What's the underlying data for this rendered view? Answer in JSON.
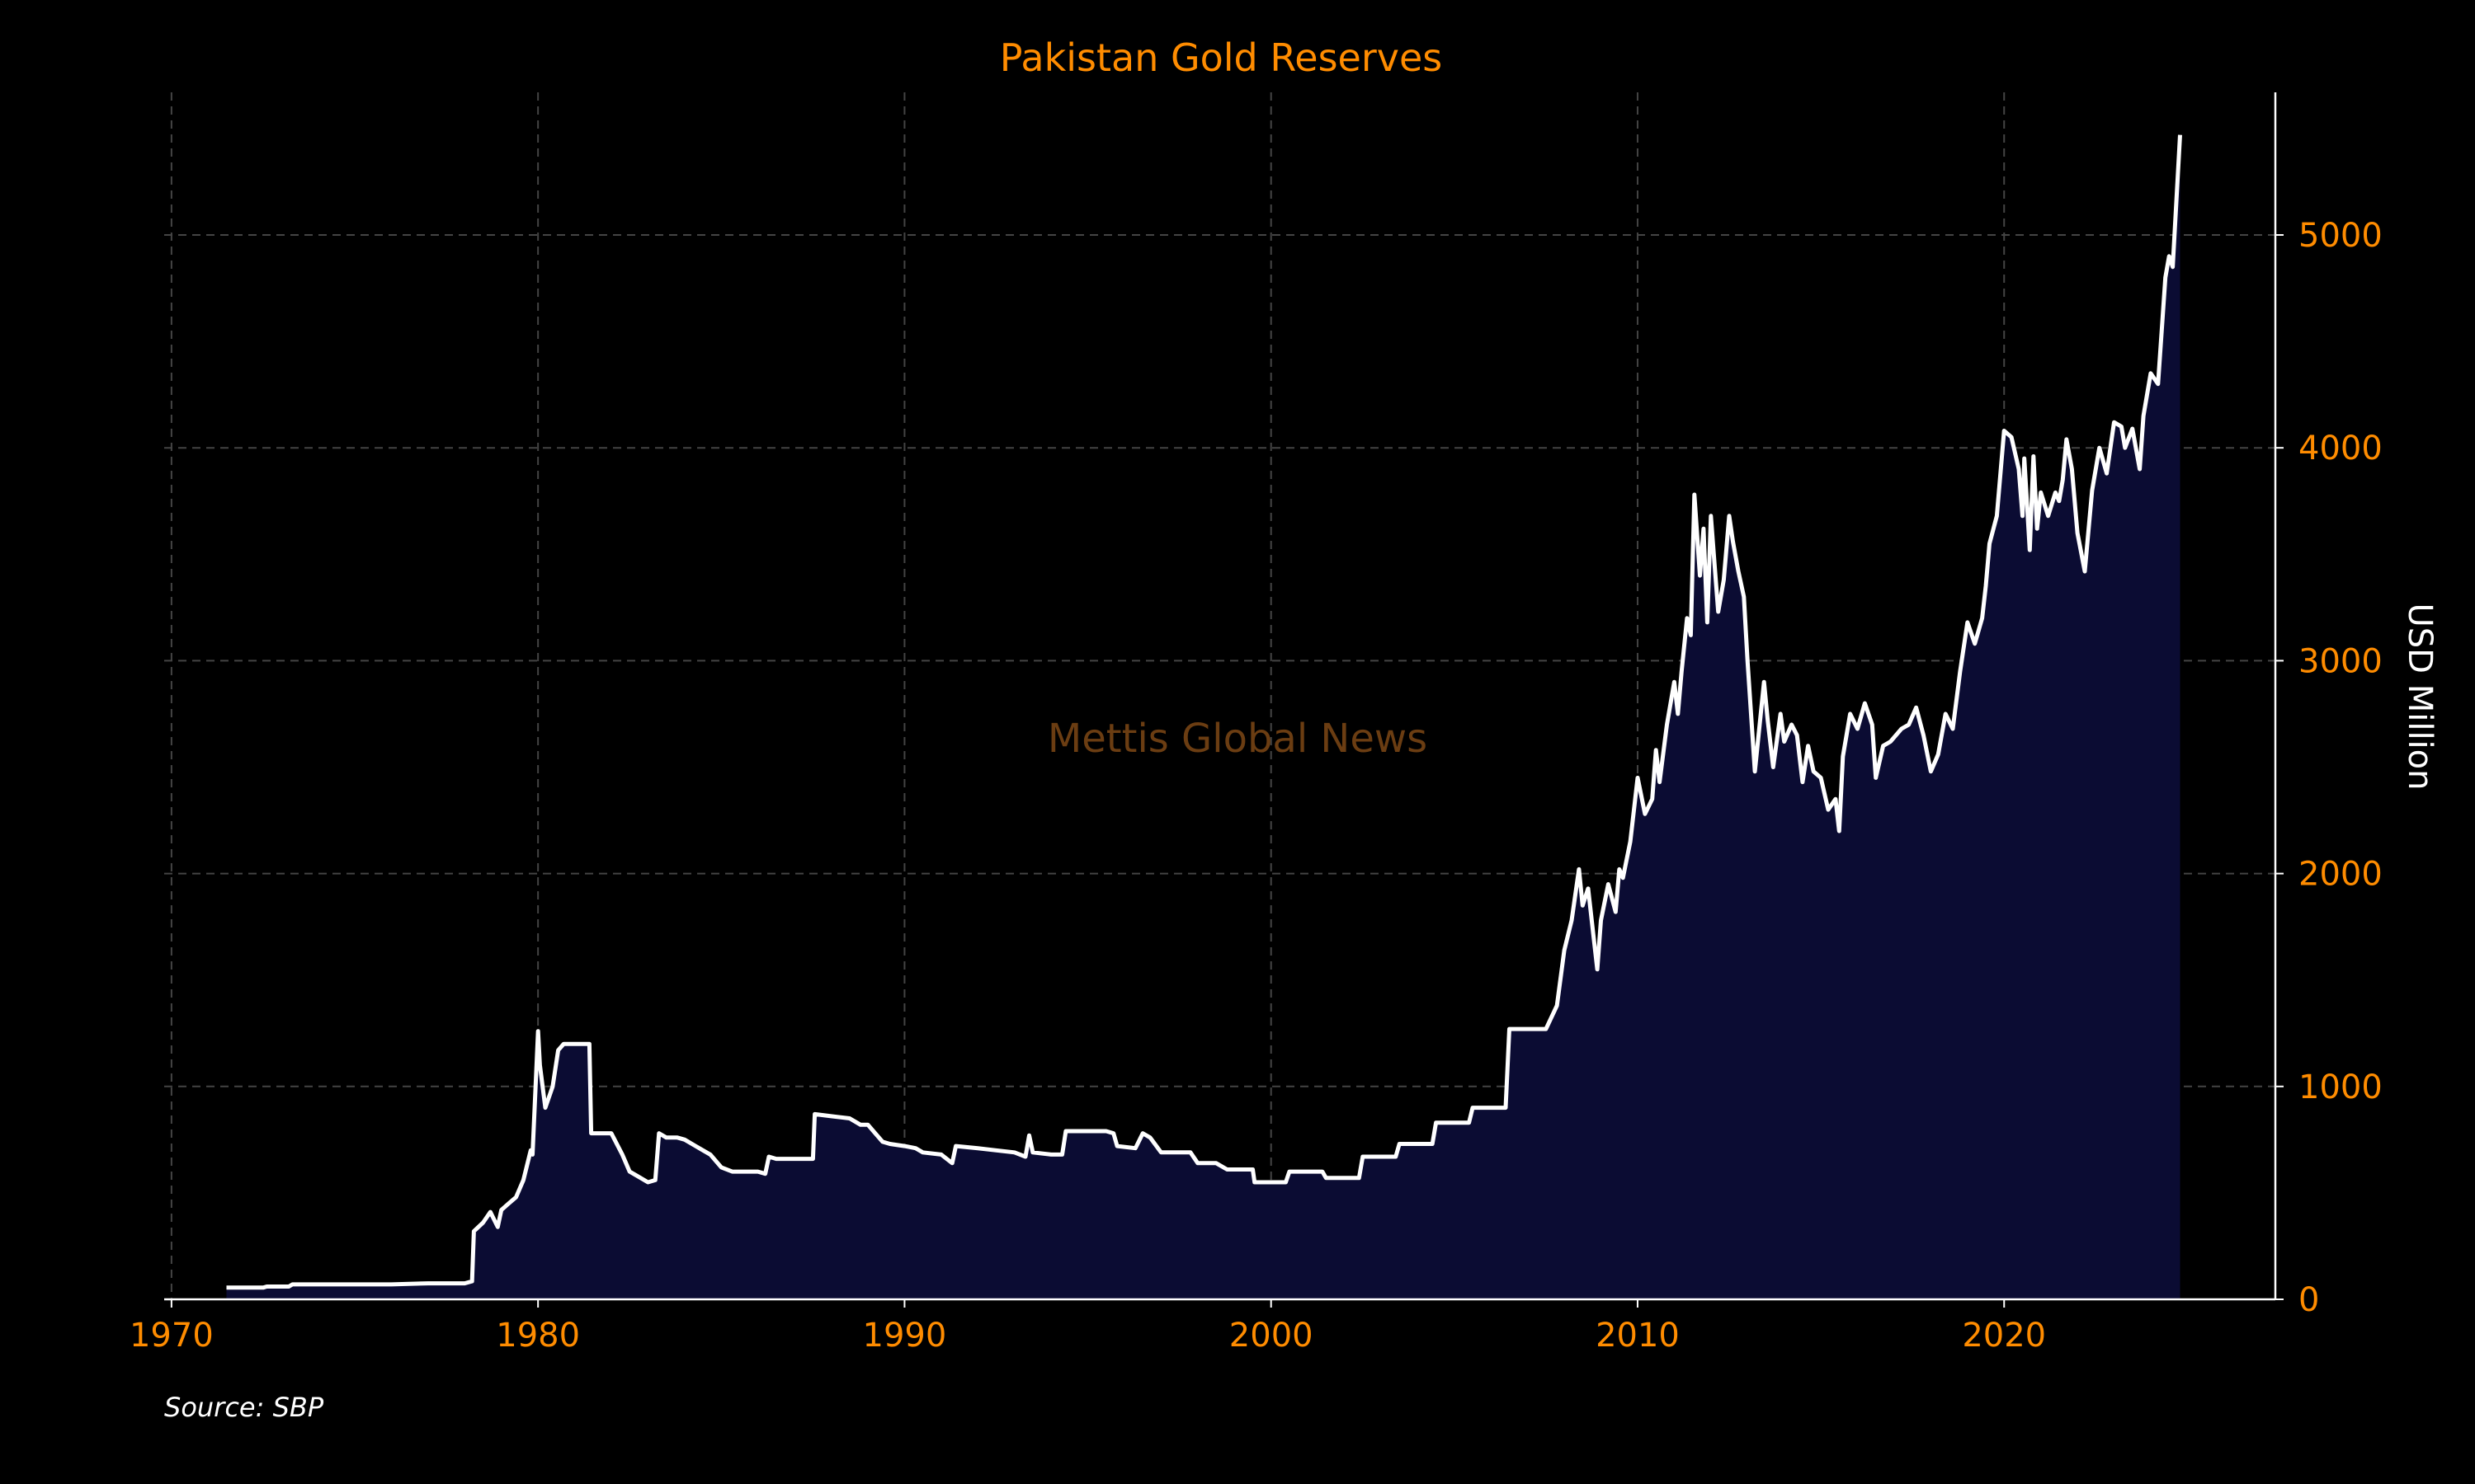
{
  "colors": {
    "background": "#000000",
    "accent": "#ff8c00",
    "line": "#ffffff",
    "fill": "#0b0c33",
    "grid": "#444444",
    "watermark": "#6b3d12"
  },
  "source": "Source: SBP",
  "watermark": "Mettis Global News",
  "chart_data": {
    "type": "area",
    "title": "Pakistan Gold Reserves",
    "xlabel": "",
    "ylabel": "USD Million",
    "x_ticks": [
      1970,
      1980,
      1990,
      2000,
      2010,
      2020
    ],
    "y_ticks": [
      0,
      1000,
      2000,
      3000,
      4000,
      5000
    ],
    "xlim": [
      1969.8,
      2027.4
    ],
    "ylim": [
      0,
      5670
    ],
    "y_axis_side": "right",
    "grid": true,
    "series": [
      {
        "x": [
          1971.5,
          1972.5,
          1972.6,
          1973.2,
          1973.3,
          1975,
          1976,
          1977,
          1978.0,
          1978.2,
          1978.25,
          1978.5,
          1978.7,
          1978.9,
          1979.0,
          1979.2,
          1979.4,
          1979.6,
          1979.8,
          1979.85,
          1980.0,
          1980.05,
          1980.2,
          1980.4,
          1980.55,
          1980.7,
          1981.0,
          1981.4,
          1981.45,
          1981.8,
          1982.0,
          1982.3,
          1982.5,
          1982.7,
          1983.0,
          1983.2,
          1983.3,
          1983.5,
          1983.8,
          1984.0,
          1984.3,
          1984.5,
          1984.7,
          1985.0,
          1985.3,
          1985.6,
          1986.0,
          1986.2,
          1986.3,
          1986.5,
          1987.0,
          1987.5,
          1987.55,
          1988.0,
          1988.5,
          1988.8,
          1989.0,
          1989.2,
          1989.4,
          1989.6,
          1990.0,
          1990.3,
          1990.5,
          1991.0,
          1991.3,
          1991.4,
          1992.0,
          1992.5,
          1993.0,
          1993.3,
          1993.4,
          1993.5,
          1994.0,
          1994.3,
          1994.4,
          1995.0,
          1995.5,
          1995.7,
          1995.8,
          1996.3,
          1996.5,
          1996.7,
          1997.0,
          1997.5,
          1997.8,
          1998.0,
          1998.5,
          1998.8,
          1999.0,
          1999.5,
          1999.55,
          2000.0,
          2000.4,
          2000.5,
          2001.0,
          2001.4,
          2001.5,
          2002.0,
          2002.4,
          2002.5,
          2003.0,
          2003.4,
          2003.5,
          2004.0,
          2004.4,
          2004.5,
          2005.0,
          2005.4,
          2005.5,
          2006.0,
          2006.4,
          2006.5,
          2007.0,
          2007.5,
          2007.8,
          2008.0,
          2008.2,
          2008.4,
          2008.5,
          2008.65,
          2008.8,
          2008.9,
          2009.0,
          2009.2,
          2009.4,
          2009.5,
          2009.6,
          2009.8,
          2010.0,
          2010.2,
          2010.4,
          2010.5,
          2010.6,
          2010.8,
          2011.0,
          2011.1,
          2011.2,
          2011.35,
          2011.45,
          2011.55,
          2011.7,
          2011.8,
          2011.9,
          2012.0,
          2012.1,
          2012.2,
          2012.35,
          2012.5,
          2012.6,
          2012.75,
          2012.9,
          2013.0,
          2013.2,
          2013.45,
          2013.55,
          2013.7,
          2013.9,
          2014.0,
          2014.2,
          2014.35,
          2014.5,
          2014.65,
          2014.8,
          2015.0,
          2015.2,
          2015.4,
          2015.5,
          2015.6,
          2015.8,
          2016.0,
          2016.2,
          2016.4,
          2016.5,
          2016.7,
          2016.9,
          2017.0,
          2017.2,
          2017.4,
          2017.6,
          2017.8,
          2018.0,
          2018.2,
          2018.4,
          2018.6,
          2018.8,
          2019.0,
          2019.2,
          2019.4,
          2019.5,
          2019.6,
          2019.8,
          2020.0,
          2020.2,
          2020.4,
          2020.5,
          2020.55,
          2020.7,
          2020.8,
          2020.9,
          2021.0,
          2021.2,
          2021.4,
          2021.5,
          2021.6,
          2021.7,
          2021.85,
          2022.0,
          2022.2,
          2022.4,
          2022.6,
          2022.8,
          2023.0,
          2023.2,
          2023.3,
          2023.5,
          2023.7,
          2023.8,
          2024.0,
          2024.2,
          2024.4,
          2024.5,
          2024.6,
          2024.8
        ],
        "y": [
          55,
          55,
          60,
          60,
          70,
          70,
          70,
          75,
          75,
          85,
          320,
          360,
          410,
          340,
          420,
          450,
          480,
          560,
          700,
          680,
          1260,
          1100,
          900,
          1000,
          1170,
          1200,
          1200,
          1200,
          780,
          780,
          780,
          680,
          600,
          580,
          550,
          560,
          780,
          760,
          760,
          750,
          720,
          700,
          680,
          620,
          600,
          600,
          600,
          590,
          670,
          660,
          660,
          660,
          870,
          860,
          850,
          820,
          820,
          780,
          740,
          730,
          720,
          710,
          690,
          680,
          640,
          720,
          710,
          700,
          690,
          670,
          770,
          690,
          680,
          680,
          790,
          790,
          790,
          780,
          720,
          710,
          780,
          760,
          690,
          690,
          690,
          640,
          640,
          610,
          610,
          610,
          550,
          550,
          550,
          600,
          600,
          600,
          570,
          570,
          570,
          670,
          670,
          670,
          730,
          730,
          730,
          830,
          830,
          830,
          900,
          900,
          900,
          1270,
          1270,
          1270,
          1380,
          1640,
          1780,
          2020,
          1850,
          1930,
          1700,
          1550,
          1780,
          1950,
          1820,
          2020,
          1980,
          2150,
          2450,
          2280,
          2350,
          2580,
          2430,
          2700,
          2900,
          2750,
          2950,
          3200,
          3120,
          3780,
          3400,
          3620,
          3180,
          3680,
          3450,
          3230,
          3380,
          3680,
          3560,
          3420,
          3300,
          3000,
          2480,
          2900,
          2720,
          2500,
          2750,
          2620,
          2700,
          2650,
          2430,
          2600,
          2480,
          2450,
          2300,
          2350,
          2200,
          2550,
          2750,
          2680,
          2800,
          2700,
          2450,
          2600,
          2620,
          2640,
          2680,
          2700,
          2780,
          2650,
          2480,
          2560,
          2750,
          2680,
          2950,
          3180,
          3080,
          3200,
          3350,
          3550,
          3680,
          4080,
          4050,
          3900,
          3680,
          3950,
          3520,
          3960,
          3620,
          3790,
          3680,
          3790,
          3750,
          3850,
          4040,
          3900,
          3600,
          3420,
          3800,
          4000,
          3880,
          4120,
          4100,
          4000,
          4090,
          3900,
          4150,
          4350,
          4300,
          4800,
          4900,
          4850,
          5470
        ]
      }
    ]
  }
}
